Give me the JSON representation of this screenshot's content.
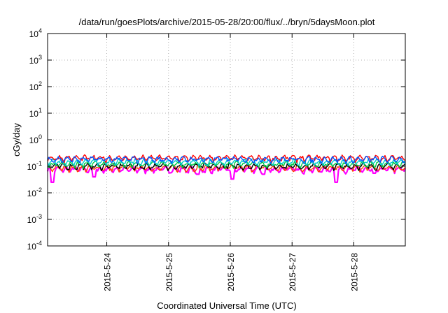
{
  "chart_data": {
    "type": "line",
    "title": "/data/run/goesPlots/archive/2015-05-28/20:00/flux/../bryn/5daysMoon.plot",
    "xlabel": "Coordinated Universal Time (UTC)",
    "ylabel": "cGy/day",
    "y_scale": "log",
    "ylim": [
      0.0001,
      10000
    ],
    "xlim": [
      "2015-05-23 01:00",
      "2015-05-28 20:00"
    ],
    "grid": true,
    "grid_style": "dotted",
    "legend": "none",
    "x_ticks": [
      "2015-5-24",
      "2015-5-25",
      "2015-5-26",
      "2015-5-27",
      "2015-5-28"
    ],
    "y_ticks": [
      {
        "base": "10",
        "exp": "-4",
        "value": 0.0001
      },
      {
        "base": "10",
        "exp": "-3",
        "value": 0.001
      },
      {
        "base": "10",
        "exp": "-2",
        "value": 0.01
      },
      {
        "base": "10",
        "exp": "-1",
        "value": 0.1
      },
      {
        "base": "10",
        "exp": "0",
        "value": 1
      },
      {
        "base": "10",
        "exp": "1",
        "value": 10
      },
      {
        "base": "10",
        "exp": "2",
        "value": 100
      },
      {
        "base": "10",
        "exp": "3",
        "value": 1000
      },
      {
        "base": "10",
        "exp": "4",
        "value": 10000
      }
    ],
    "series": [
      {
        "color": "#ff00ff",
        "baseline": 0.075,
        "dips": [
          {
            "t": "2015-05-23 03:00",
            "v": 0.025
          },
          {
            "t": "2015-05-23 19:00",
            "v": 0.04
          },
          {
            "t": "2015-05-25 11:30",
            "v": 0.05
          },
          {
            "t": "2015-05-26 01:00",
            "v": 0.033
          },
          {
            "t": "2015-05-26 13:00",
            "v": 0.05
          },
          {
            "t": "2015-05-27 17:00",
            "v": 0.025
          },
          {
            "t": "2015-05-28 08:00",
            "v": 0.055
          }
        ]
      },
      {
        "color": "#ff4400",
        "baseline": 0.085,
        "dips": []
      },
      {
        "color": "#000000",
        "baseline": 0.1,
        "dips": []
      },
      {
        "color": "#00cc44",
        "baseline": 0.12,
        "dips": []
      },
      {
        "color": "#00cccc",
        "baseline": 0.145,
        "dips": []
      },
      {
        "color": "#ff0000",
        "baseline": 0.2,
        "dips": []
      },
      {
        "color": "#0055ff",
        "baseline": 0.18,
        "dips": []
      }
    ]
  }
}
